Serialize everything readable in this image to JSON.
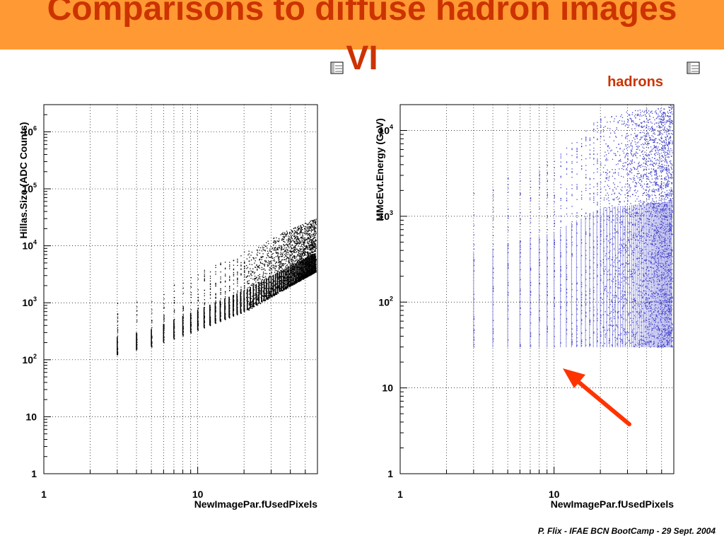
{
  "slide": {
    "title": "Comparisons to diffuse hadron images VI",
    "footer": "P. Flix - IFAE BCN BootCamp -  29 Sept. 2004",
    "legend_label": "hadrons",
    "title_bar_color": "#ff9933",
    "title_text_color": "#cc3300"
  },
  "chart_data": [
    {
      "type": "scatter",
      "xlabel": "NewImagePar.fUsedPixels",
      "ylabel": "Hillas.Size (ADC Counts)",
      "x_scale": "log",
      "y_scale": "log",
      "xlim": [
        1,
        60
      ],
      "ylim": [
        1,
        3000000
      ],
      "x_ticks": [
        {
          "label": "1",
          "value": 1
        },
        {
          "label": "10",
          "value": 10
        }
      ],
      "y_ticks": [
        {
          "base": "1",
          "exp": "",
          "value": 1
        },
        {
          "base": "10",
          "exp": "",
          "value": 10
        },
        {
          "base": "10",
          "exp": "2",
          "value": 100
        },
        {
          "base": "10",
          "exp": "3",
          "value": 1000
        },
        {
          "base": "10",
          "exp": "4",
          "value": 10000
        },
        {
          "base": "10",
          "exp": "5",
          "value": 100000
        },
        {
          "base": "10",
          "exp": "6",
          "value": 1000000
        }
      ],
      "grid": true,
      "marker_color": "#000000",
      "x_columns": [
        3,
        4,
        5,
        6,
        7,
        8,
        9,
        10,
        11,
        12,
        13,
        14,
        15,
        16,
        17,
        18,
        19,
        20,
        21,
        22,
        23,
        24,
        25,
        26,
        27,
        28,
        29,
        30,
        31,
        32,
        33,
        34,
        35,
        36,
        37,
        38,
        39,
        40,
        41,
        42,
        43,
        44,
        45,
        46,
        47,
        48,
        49,
        50,
        51,
        52,
        53,
        54,
        55,
        56,
        57,
        58
      ],
      "y_band": [
        {
          "x": 3,
          "y_min": 120,
          "y_max": 1000
        },
        {
          "x": 5,
          "y_min": 170,
          "y_max": 1300
        },
        {
          "x": 10,
          "y_min": 330,
          "y_max": 3500
        },
        {
          "x": 20,
          "y_min": 700,
          "y_max": 8000
        },
        {
          "x": 40,
          "y_min": 2000,
          "y_max": 20000
        },
        {
          "x": 58,
          "y_min": 3500,
          "y_max": 30000
        }
      ]
    },
    {
      "type": "scatter",
      "xlabel": "NewImagePar.fUsedPixels",
      "ylabel": "MMcEvt.Energy (GeV)",
      "x_scale": "log",
      "y_scale": "log",
      "xlim": [
        1,
        60
      ],
      "ylim": [
        1,
        20000
      ],
      "x_ticks": [
        {
          "label": "1",
          "value": 1
        },
        {
          "label": "10",
          "value": 10
        }
      ],
      "y_ticks": [
        {
          "base": "1",
          "exp": "",
          "value": 1
        },
        {
          "base": "10",
          "exp": "",
          "value": 10
        },
        {
          "base": "10",
          "exp": "2",
          "value": 100
        },
        {
          "base": "10",
          "exp": "3",
          "value": 1000
        },
        {
          "base": "10",
          "exp": "4",
          "value": 10000
        }
      ],
      "grid": true,
      "marker_color": "#4444cc",
      "x_columns": [
        3,
        4,
        5,
        6,
        7,
        8,
        9,
        10,
        11,
        12,
        13,
        14,
        15,
        16,
        17,
        18,
        19,
        20,
        21,
        22,
        23,
        24,
        25,
        26,
        27,
        28,
        29,
        30,
        31,
        32,
        33,
        34,
        35,
        36,
        37,
        38,
        39,
        40,
        41,
        42,
        43,
        44,
        45,
        46,
        47,
        48,
        49,
        50,
        51,
        52,
        53,
        54,
        55,
        56,
        57,
        58
      ],
      "y_band": [
        {
          "x": 3,
          "y_min": 30,
          "y_max": 2000
        },
        {
          "x": 10,
          "y_min": 30,
          "y_max": 5000
        },
        {
          "x": 20,
          "y_min": 30,
          "y_max": 15000
        },
        {
          "x": 58,
          "y_min": 30,
          "y_max": 20000
        }
      ],
      "annotation": {
        "type": "arrow",
        "color": "#ff3300",
        "points_to": "energy threshold near 30 GeV"
      }
    }
  ]
}
